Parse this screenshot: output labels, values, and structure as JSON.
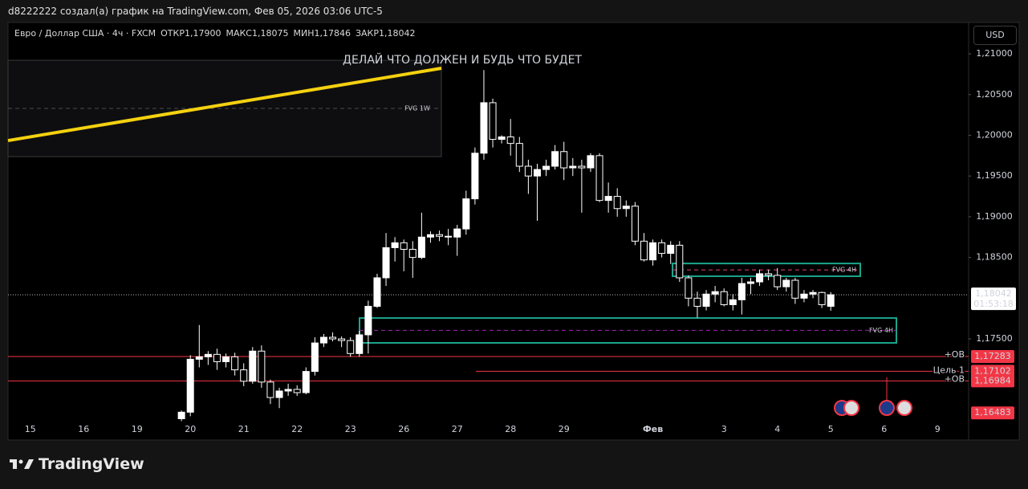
{
  "header": {
    "caption": "d8222222 создал(а) график на TradingView.com, Фев 05, 2026 03:06 UTC-5",
    "symbol": "Евро / Доллар США · 4ч · FXCM",
    "ohlc": [
      {
        "label": "ОТКР",
        "value": "1,17900"
      },
      {
        "label": "МАКС",
        "value": "1,18075"
      },
      {
        "label": "МИН",
        "value": "1,17846"
      },
      {
        "label": "ЗАКР",
        "value": "1,18042"
      }
    ],
    "currency": "USD"
  },
  "footer": {
    "logo": "TradingView"
  },
  "chart_data": {
    "type": "candlestick",
    "categories": [
      null,
      null,
      "15",
      null,
      null,
      null,
      null,
      null,
      "16",
      null,
      null,
      null,
      null,
      null,
      "19",
      null,
      null,
      null,
      null,
      null,
      "20",
      null,
      null,
      null,
      null,
      null,
      "21",
      null,
      null,
      null,
      null,
      null,
      "22",
      null,
      null,
      null,
      null,
      null,
      "23",
      null,
      null,
      null,
      null,
      null,
      "26",
      null,
      null,
      null,
      null,
      null,
      "27",
      null,
      null,
      null,
      null,
      null,
      "28",
      null,
      null,
      null,
      null,
      null,
      "29",
      null,
      null,
      null,
      null,
      null,
      null,
      null,
      null,
      null,
      "Фев",
      null,
      null,
      null,
      null,
      null,
      null,
      null,
      "3",
      null,
      null,
      null,
      null,
      null,
      "4",
      null,
      null,
      null,
      null,
      null,
      "5",
      null,
      null,
      null,
      null,
      null,
      "6",
      null,
      null,
      null,
      null,
      null,
      "9",
      null,
      null,
      null
    ],
    "open": [
      null,
      null,
      null,
      null,
      null,
      null,
      null,
      null,
      null,
      null,
      null,
      null,
      null,
      null,
      null,
      null,
      null,
      null,
      null,
      1.1652,
      1.166,
      1.1725,
      1.1728,
      1.1731,
      1.1722,
      1.1728,
      1.1712,
      1.1698,
      1.1735,
      1.1697,
      1.1678,
      1.1686,
      1.1688,
      1.1684,
      1.171,
      1.1745,
      1.1752,
      1.175,
      1.1748,
      1.1732,
      1.1755,
      1.179,
      1.1825,
      1.1862,
      1.1868,
      1.186,
      1.185,
      1.1875,
      1.1878,
      1.1876,
      1.1875,
      1.1885,
      1.1922,
      1.1978,
      1.204,
      1.1995,
      1.1998,
      1.199,
      1.1962,
      1.195,
      1.1958,
      1.1962,
      1.198,
      1.196,
      1.1962,
      1.196,
      1.1975,
      1.192,
      1.1925,
      1.191,
      1.1913,
      1.187,
      1.1847,
      1.1868,
      1.1855,
      1.1865,
      1.1825,
      1.18,
      1.179,
      1.1805,
      1.1808,
      1.1792,
      1.1798,
      1.1818,
      1.182,
      1.183,
      1.1828,
      1.1814,
      1.1822,
      1.18,
      1.1805,
      1.1807,
      1.179,
      null,
      null,
      null,
      null,
      null,
      null,
      null,
      null,
      null,
      null,
      null,
      null,
      null,
      null,
      null
    ],
    "high": [
      null,
      null,
      null,
      null,
      null,
      null,
      null,
      null,
      null,
      null,
      null,
      null,
      null,
      null,
      null,
      null,
      null,
      null,
      null,
      1.1662,
      1.173,
      1.1767,
      1.1735,
      1.1738,
      1.1732,
      1.1733,
      1.172,
      1.174,
      1.1742,
      1.17,
      1.169,
      1.1695,
      1.1693,
      1.1715,
      1.1752,
      1.1756,
      1.1758,
      1.1753,
      1.1752,
      1.176,
      1.1797,
      1.183,
      1.188,
      1.1875,
      1.1872,
      1.187,
      1.1905,
      1.1882,
      1.1883,
      1.1885,
      1.189,
      1.1932,
      1.1985,
      1.208,
      1.2045,
      1.2,
      1.202,
      1.1998,
      1.197,
      1.1965,
      1.197,
      1.1988,
      1.1992,
      1.1972,
      1.197,
      1.1978,
      1.1978,
      1.1942,
      1.1935,
      1.192,
      1.1918,
      1.188,
      1.1872,
      1.1872,
      1.187,
      1.187,
      1.1828,
      1.1808,
      1.181,
      1.1815,
      1.1812,
      1.1805,
      1.1825,
      1.1825,
      1.1835,
      1.1835,
      1.1837,
      1.1825,
      1.1825,
      1.181,
      1.181,
      1.1808,
      1.18075,
      null,
      null,
      null,
      null,
      null,
      null,
      null,
      null,
      null,
      null,
      null,
      null,
      null,
      null,
      null
    ],
    "low": [
      null,
      null,
      null,
      null,
      null,
      null,
      null,
      null,
      null,
      null,
      null,
      null,
      null,
      null,
      null,
      null,
      null,
      null,
      null,
      1.1649,
      1.1655,
      1.1715,
      1.1718,
      1.1712,
      1.1715,
      1.1705,
      1.1692,
      1.1695,
      1.169,
      1.167,
      1.1665,
      1.168,
      1.168,
      1.1682,
      1.1705,
      1.174,
      1.1747,
      1.174,
      1.1728,
      1.1728,
      1.1732,
      1.1788,
      1.1815,
      1.1845,
      1.1833,
      1.1825,
      1.1848,
      1.1868,
      1.187,
      1.1865,
      1.1852,
      1.1878,
      1.1915,
      1.197,
      1.1985,
      1.199,
      1.1975,
      1.1955,
      1.1928,
      1.1895,
      1.195,
      1.1958,
      1.1945,
      1.195,
      1.1905,
      1.1955,
      1.1918,
      1.1905,
      1.19,
      1.19,
      1.1865,
      1.1845,
      1.184,
      1.185,
      1.1842,
      1.182,
      1.179,
      1.1776,
      1.1785,
      1.1795,
      1.179,
      1.1785,
      1.178,
      1.1805,
      1.1815,
      1.1822,
      1.181,
      1.1808,
      1.1793,
      1.1795,
      1.18,
      1.1788,
      1.17846,
      null,
      null,
      null,
      null,
      null,
      null,
      null,
      null,
      null,
      null,
      null,
      null,
      null,
      null,
      null
    ],
    "close": [
      null,
      null,
      null,
      null,
      null,
      null,
      null,
      null,
      null,
      null,
      null,
      null,
      null,
      null,
      null,
      null,
      null,
      null,
      null,
      1.166,
      1.1725,
      1.1728,
      1.1731,
      1.1722,
      1.1728,
      1.1712,
      1.1698,
      1.1735,
      1.1697,
      1.1678,
      1.1686,
      1.1688,
      1.1684,
      1.171,
      1.1745,
      1.1752,
      1.175,
      1.1748,
      1.1732,
      1.1755,
      1.179,
      1.1825,
      1.1862,
      1.1868,
      1.186,
      1.185,
      1.1875,
      1.1878,
      1.1876,
      1.1875,
      1.1885,
      1.1922,
      1.1978,
      1.204,
      1.1995,
      1.1998,
      1.199,
      1.1962,
      1.195,
      1.1958,
      1.1962,
      1.198,
      1.196,
      1.1962,
      1.196,
      1.1975,
      1.192,
      1.1925,
      1.191,
      1.1913,
      1.187,
      1.1847,
      1.1868,
      1.1855,
      1.1865,
      1.1825,
      1.18,
      1.179,
      1.1805,
      1.1808,
      1.1792,
      1.1798,
      1.1818,
      1.182,
      1.183,
      1.1828,
      1.1814,
      1.1822,
      1.18,
      1.1805,
      1.1807,
      1.1792,
      1.18042,
      null,
      null,
      null,
      null,
      null,
      null,
      null,
      null,
      null,
      null,
      null,
      null,
      null,
      null,
      null
    ],
    "up_color": "#ffffff",
    "down_color": "#000000",
    "wick_color": "#ffffff",
    "ylim": [
      1.16485,
      1.21385
    ],
    "yticks": [
      {
        "value": 1.21,
        "label": "1,21000"
      },
      {
        "value": 1.205,
        "label": "1,20500"
      },
      {
        "value": 1.2,
        "label": "1,20000"
      },
      {
        "value": 1.195,
        "label": "1,19500"
      },
      {
        "value": 1.19,
        "label": "1,19000"
      },
      {
        "value": 1.185,
        "label": "1,18500"
      },
      {
        "value": 1.175,
        "label": "1,17500"
      }
    ],
    "annotation": "ДЕЛАЙ ЧТО ДОЛЖЕН И БУДЬ ЧТО БУДЕТ",
    "trendline": {
      "color": "#f5d10f",
      "values": [
        1.19935,
        1.20823
      ]
    },
    "zones": [
      {
        "label": "FVG 1W",
        "top": 1.20921,
        "bottom": 1.19738,
        "mid": 1.2033,
        "color": "#3a3a3a",
        "mid_color": "#4a4a4a",
        "label_color": "#f5d10f"
      },
      {
        "label": "FVG 4H",
        "top": 1.18426,
        "bottom": 1.18269,
        "mid": 1.18347,
        "color": "#1aa58c",
        "mid_color": "#e0457b",
        "label_color": "#f23645"
      },
      {
        "label": "FVG 4H",
        "top": 1.17756,
        "bottom": 1.17451,
        "mid": 1.17605,
        "color": "#1aa58c",
        "mid_color": "#9c27b0",
        "label_color": "#f23645"
      }
    ],
    "levels": [
      {
        "label": "+OB",
        "value": 1.17283,
        "value_label": "1,17283"
      },
      {
        "label": "Цель 1",
        "value": 1.17102,
        "value_label": "1,17102"
      },
      {
        "label": "+OB",
        "value": 1.16984,
        "value_label": "1,16984"
      }
    ],
    "level_color": "#f23645",
    "low_marker": {
      "value": 1.16483,
      "label": "1,16483"
    },
    "last_price": {
      "value": 1.18042,
      "label": "1,18042",
      "countdown": "01:53:18"
    }
  }
}
